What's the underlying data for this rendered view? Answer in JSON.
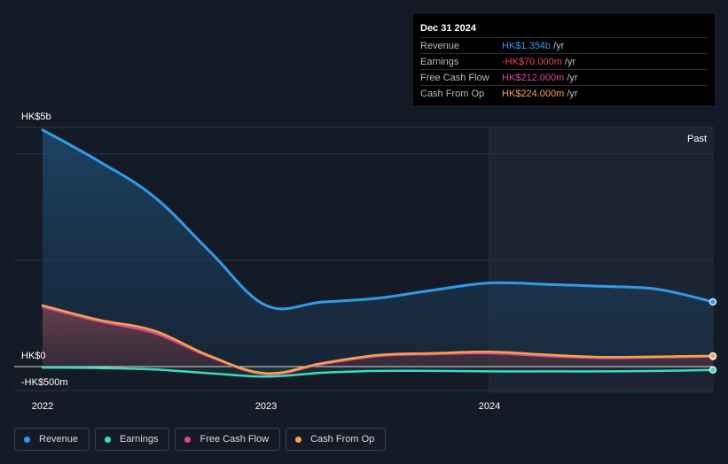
{
  "tooltip": {
    "date": "Dec 31 2024",
    "rows": [
      {
        "label": "Revenue",
        "value": "HK$1.354b",
        "unit": "/yr",
        "color": "#2f9be8"
      },
      {
        "label": "Earnings",
        "value": "-HK$70.000m",
        "unit": "/yr",
        "color": "#f0455e"
      },
      {
        "label": "Free Cash Flow",
        "value": "HK$212.000m",
        "unit": "/yr",
        "color": "#d9479a"
      },
      {
        "label": "Cash From Op",
        "value": "HK$224.000m",
        "unit": "/yr",
        "color": "#f5a545"
      }
    ]
  },
  "past_label": "Past",
  "legend": [
    {
      "label": "Revenue",
      "color": "#2f9be8"
    },
    {
      "label": "Earnings",
      "color": "#3fd8c4"
    },
    {
      "label": "Free Cash Flow",
      "color": "#d9479a"
    },
    {
      "label": "Cash From Op",
      "color": "#f5a545"
    }
  ],
  "chart_data": {
    "type": "line",
    "x_ticks": [
      "2022",
      "2023",
      "2024"
    ],
    "y_ticks": [
      "HK$5b",
      "HK$0",
      "-HK$500m"
    ],
    "ylim": [
      -0.5,
      5.0
    ],
    "xlim": [
      2022.0,
      2025.0
    ],
    "series": [
      {
        "name": "Revenue",
        "color": "#2f9be8",
        "x": [
          2022.0,
          2022.25,
          2022.5,
          2022.75,
          2023.0,
          2023.25,
          2023.5,
          2023.75,
          2024.0,
          2024.25,
          2024.5,
          2024.75,
          2025.0
        ],
        "y": [
          4.95,
          4.3,
          3.55,
          2.4,
          1.28,
          1.35,
          1.43,
          1.6,
          1.75,
          1.72,
          1.68,
          1.62,
          1.354
        ]
      },
      {
        "name": "Earnings",
        "color": "#3fd8c4",
        "x": [
          2022.0,
          2022.25,
          2022.5,
          2022.75,
          2023.0,
          2023.25,
          2023.5,
          2023.75,
          2024.0,
          2024.25,
          2024.5,
          2024.75,
          2025.0
        ],
        "y": [
          -0.02,
          -0.03,
          -0.06,
          -0.14,
          -0.21,
          -0.13,
          -0.09,
          -0.09,
          -0.1,
          -0.1,
          -0.1,
          -0.09,
          -0.07
        ]
      },
      {
        "name": "Free Cash Flow",
        "color": "#d9479a",
        "x": [
          2022.0,
          2022.25,
          2022.5,
          2022.75,
          2023.0,
          2023.25,
          2023.5,
          2023.75,
          2024.0,
          2024.25,
          2024.5,
          2024.75,
          2025.0
        ],
        "y": [
          1.25,
          0.95,
          0.7,
          0.2,
          -0.16,
          0.05,
          0.22,
          0.26,
          0.28,
          0.22,
          0.18,
          0.19,
          0.212
        ]
      },
      {
        "name": "Cash From Op",
        "color": "#f5a545",
        "x": [
          2022.0,
          2022.25,
          2022.5,
          2022.75,
          2023.0,
          2023.25,
          2023.5,
          2023.75,
          2024.0,
          2024.25,
          2024.5,
          2024.75,
          2025.0
        ],
        "y": [
          1.28,
          0.98,
          0.75,
          0.22,
          -0.14,
          0.07,
          0.24,
          0.28,
          0.31,
          0.25,
          0.2,
          0.21,
          0.224
        ]
      }
    ]
  }
}
